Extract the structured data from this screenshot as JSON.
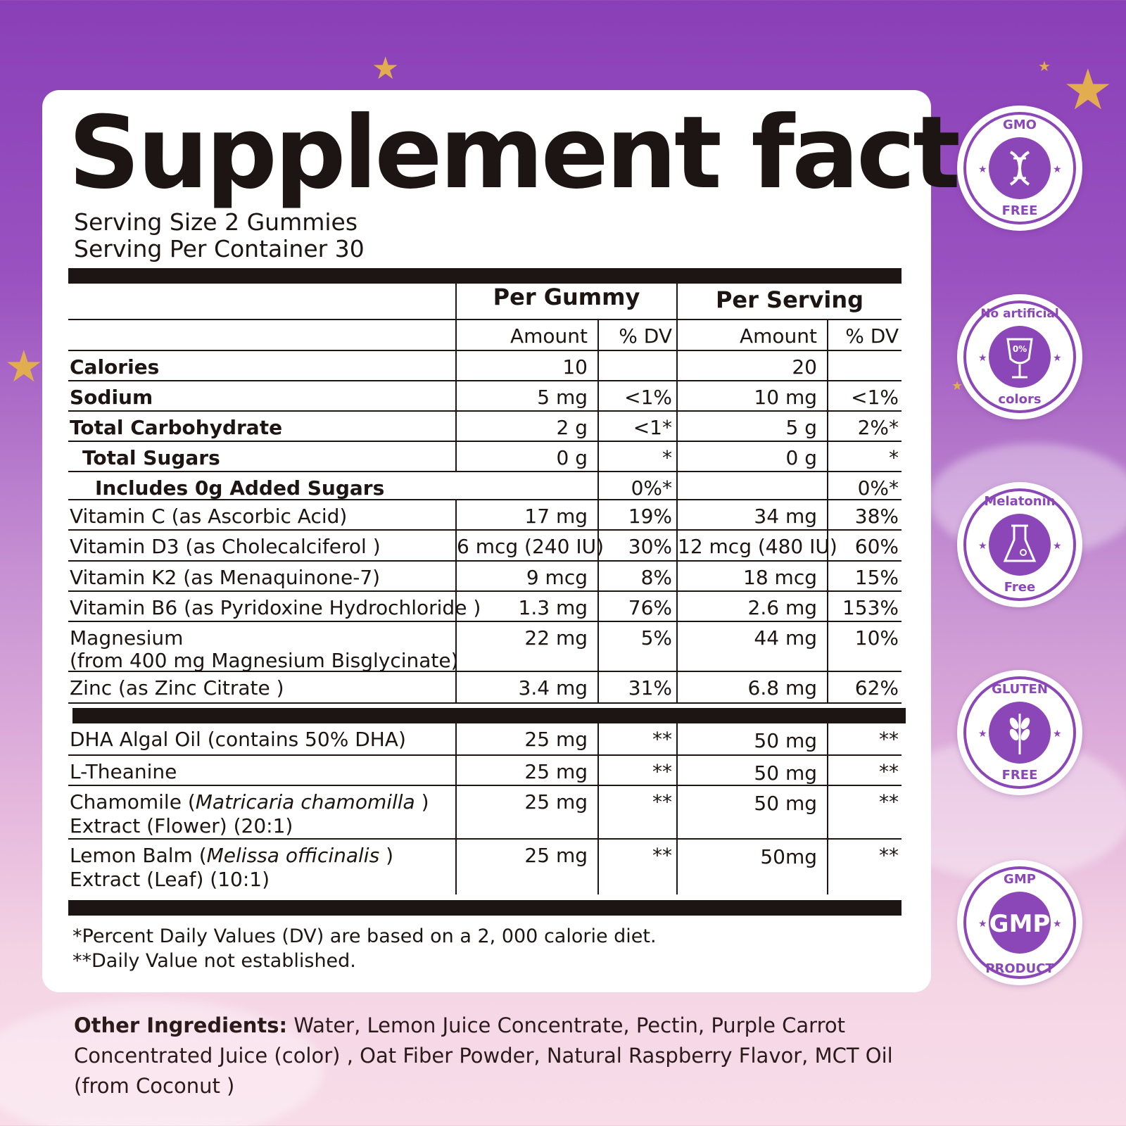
{
  "title": "Supplement facts",
  "serving_size": "Serving Size 2 Gummies",
  "servings_per_container": "Serving Per Container 30",
  "headers": {
    "per_gummy": "Per Gummy",
    "per_serving": "Per Serving",
    "amount": "Amount",
    "dv": "% DV"
  },
  "rows": [
    {
      "name": "Calories",
      "a1": "10",
      "d1": "",
      "a2": "20",
      "d2": ""
    },
    {
      "name": "Sodium",
      "a1": "5 mg",
      "d1": "<1%",
      "a2": "10 mg",
      "d2": "<1%"
    },
    {
      "name": "Total Carbohydrate",
      "a1": "2 g",
      "d1": "<1*",
      "a2": "5 g",
      "d2": "2%*"
    },
    {
      "name": "Total Sugars",
      "a1": "0 g",
      "d1": "*",
      "a2": "0 g",
      "d2": "*"
    },
    {
      "name": "Includes 0g  Added  Sugars",
      "a1": "",
      "d1": "0%*",
      "a2": "",
      "d2": "0%*"
    },
    {
      "name": "Vitamin C (as Ascorbic Acid)",
      "a1": "17 mg",
      "d1": "19%",
      "a2": "34 mg",
      "d2": "38%"
    },
    {
      "name": "Vitamin D3 (as Cholecalciferol )",
      "a1": "6 mcg (240 IU)",
      "d1": "30%",
      "a2": "12 mcg (480 IU)",
      "d2": "60%"
    },
    {
      "name": "Vitamin K2 (as Menaquinone-7)",
      "a1": "9 mcg",
      "d1": "8%",
      "a2": "18 mcg",
      "d2": "15%"
    },
    {
      "name": "Vitamin B6 (as Pyridoxine Hydrochloride )",
      "a1": "1.3 mg",
      "d1": "76%",
      "a2": "2.6 mg",
      "d2": "153%"
    },
    {
      "name": "Magnesium",
      "name2": "(from 400 mg Magnesium Bisglycinate)",
      "a1": "22 mg",
      "d1": "5%",
      "a2": "44 mg",
      "d2": "10%"
    },
    {
      "name": "Zinc (as Zinc Citrate )",
      "a1": "3.4 mg",
      "d1": "31%",
      "a2": "6.8 mg",
      "d2": "62%"
    }
  ],
  "rows2": [
    {
      "name": "DHA Algal Oil (contains 50% DHA)",
      "a1": "25 mg",
      "d1": "**",
      "a2": "50 mg",
      "d2": "**"
    },
    {
      "name": "L-Theanine",
      "a1": "25 mg",
      "d1": "**",
      "a2": "50 mg",
      "d2": "**"
    },
    {
      "name_pre": "Chamomile (",
      "name_latin": "Matricaria chamomilla",
      "name_post": " )",
      "name2": "Extract (Flower) (20:1)",
      "a1": "25 mg",
      "d1": "**",
      "a2": "50 mg",
      "d2": "**"
    },
    {
      "name_pre": "Lemon Balm (",
      "name_latin": "Melissa officinalis",
      "name_post": " )",
      "name2": "Extract (Leaf) (10:1)",
      "a1": "25 mg",
      "d1": "**",
      "a2": "50mg",
      "d2": "**"
    }
  ],
  "footnote1": "*Percent Daily Values (DV) are based on a 2, 000 calorie diet.",
  "footnote2": "**Daily Value not established.",
  "other_label": "Other Ingredients:",
  "other_text": " Water, Lemon Juice Concentrate, Pectin, Purple Carrot Concentrated Juice (color) , Oat Fiber Powder, Natural Raspberry Flavor, MCT Oil (from Coconut )",
  "badges": [
    {
      "top": "GMO",
      "bottom": "FREE",
      "icon": "dna-icon"
    },
    {
      "top": "No artificial",
      "bottom": "colors",
      "icon": "wine-glass-icon",
      "center": "0%"
    },
    {
      "top": "Melatonin",
      "bottom": "Free",
      "icon": "flask-icon"
    },
    {
      "top": "GLUTEN",
      "bottom": "FREE",
      "icon": "wheat-icon"
    },
    {
      "top": "GMP",
      "bottom": "PRODUCT",
      "icon": "gmp-icon",
      "center": "GMP"
    }
  ],
  "colors": {
    "accent": "#8b46b8",
    "ink": "#1d1414",
    "star": "#e2ad4e"
  }
}
